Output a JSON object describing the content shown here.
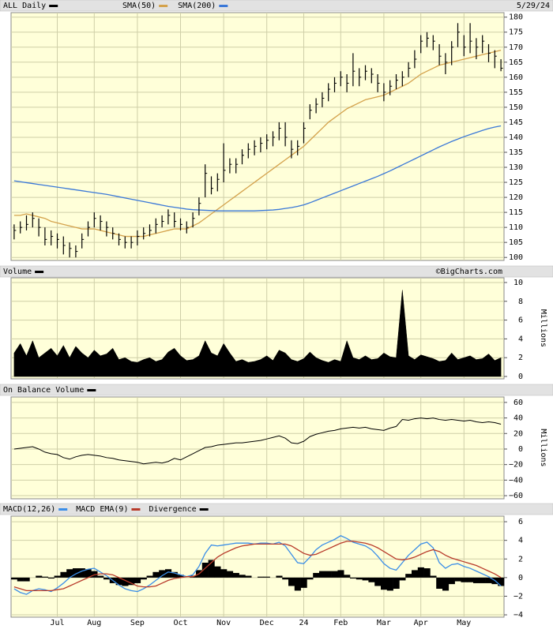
{
  "chart_data": [
    {
      "type": "ohlc",
      "title": "ALL Daily",
      "date": "5/29/24",
      "color": "#000000",
      "high": [
        111,
        112,
        114,
        115,
        113,
        110,
        109,
        108,
        107,
        105,
        104,
        108,
        112,
        115,
        114,
        112,
        110,
        108,
        107,
        107,
        109,
        110,
        111,
        113,
        114,
        116,
        115,
        113,
        112,
        115,
        120,
        131,
        127,
        128,
        138,
        133,
        133,
        136,
        138,
        139,
        140,
        141,
        142,
        145,
        145,
        139,
        139,
        145,
        151,
        153,
        155,
        158,
        160,
        162,
        161,
        168,
        163,
        164,
        163,
        161,
        158,
        159,
        161,
        162,
        165,
        169,
        174,
        175,
        174,
        171,
        168,
        172,
        178,
        174,
        178,
        173,
        174,
        171,
        169,
        166
      ],
      "low": [
        106,
        108,
        109,
        110,
        107,
        104,
        104,
        103,
        101,
        100,
        100,
        103,
        107,
        110,
        109,
        107,
        106,
        104,
        103,
        103,
        104,
        106,
        107,
        108,
        110,
        111,
        110,
        109,
        108,
        110,
        114,
        120,
        121,
        122,
        125,
        128,
        128,
        131,
        133,
        134,
        135,
        136,
        137,
        139,
        137,
        133,
        134,
        138,
        146,
        148,
        150,
        152,
        155,
        157,
        155,
        157,
        157,
        159,
        158,
        155,
        152,
        154,
        156,
        157,
        160,
        163,
        168,
        170,
        169,
        164,
        161,
        164,
        170,
        167,
        168,
        166,
        168,
        165,
        163,
        162
      ],
      "close": [
        109,
        110,
        111,
        113,
        110,
        106,
        107,
        106,
        104,
        103,
        102,
        106,
        110,
        113,
        112,
        110,
        108,
        106,
        105,
        105,
        107,
        108,
        109,
        111,
        112,
        114,
        112,
        111,
        110,
        113,
        118,
        128,
        123,
        126,
        129,
        131,
        131,
        134,
        136,
        137,
        138,
        139,
        140,
        143,
        140,
        136,
        137,
        143,
        149,
        151,
        153,
        156,
        158,
        160,
        158,
        162,
        160,
        162,
        161,
        158,
        155,
        157,
        159,
        160,
        163,
        166,
        172,
        173,
        172,
        167,
        165,
        170,
        175,
        170,
        172,
        170,
        172,
        168,
        167,
        163
      ],
      "series": [
        {
          "name": "SMA(50)",
          "color": "#d4a24c",
          "values": [
            114,
            114,
            114.5,
            114,
            113.5,
            113,
            112,
            111.5,
            111,
            110.5,
            110,
            109.5,
            109.5,
            109.5,
            109,
            108.5,
            108,
            107.5,
            107,
            107,
            107,
            107,
            107.5,
            108,
            108.5,
            109,
            109.5,
            109.5,
            109.5,
            110.5,
            111.5,
            113,
            114.5,
            116,
            117.5,
            119,
            120.5,
            122,
            123.5,
            125,
            126.5,
            128,
            129.5,
            131,
            132.5,
            134,
            135.5,
            137,
            139,
            141,
            143,
            145,
            146.5,
            148,
            149.5,
            150.5,
            151.5,
            152.5,
            153,
            153.5,
            154,
            155,
            156,
            157,
            158,
            159.5,
            161,
            162,
            163,
            164,
            164.5,
            165,
            165.5,
            166,
            166.5,
            167,
            167.5,
            168,
            168.5,
            169
          ]
        },
        {
          "name": "SMA(200)",
          "color": "#3a78d8",
          "values": [
            125.5,
            125.2,
            124.9,
            124.6,
            124.3,
            124,
            123.7,
            123.4,
            123.1,
            122.8,
            122.5,
            122.2,
            121.9,
            121.6,
            121.3,
            121,
            120.6,
            120.2,
            119.8,
            119.4,
            119,
            118.6,
            118.2,
            117.8,
            117.4,
            117,
            116.7,
            116.4,
            116.1,
            115.9,
            115.8,
            115.7,
            115.6,
            115.5,
            115.5,
            115.5,
            115.5,
            115.5,
            115.5,
            115.5,
            115.6,
            115.7,
            115.8,
            116,
            116.3,
            116.6,
            117,
            117.5,
            118.2,
            119,
            119.8,
            120.6,
            121.4,
            122.2,
            123,
            123.8,
            124.6,
            125.4,
            126.2,
            127,
            127.9,
            128.8,
            129.8,
            130.8,
            131.8,
            132.8,
            133.8,
            134.8,
            135.8,
            136.8,
            137.7,
            138.6,
            139.4,
            140.2,
            140.9,
            141.6,
            142.3,
            142.9,
            143.4,
            143.8
          ]
        }
      ],
      "ylim": [
        99,
        181.5
      ],
      "yticks": [
        100,
        105,
        110,
        115,
        120,
        125,
        130,
        135,
        140,
        145,
        150,
        155,
        160,
        165,
        170,
        175,
        180
      ],
      "grid": true
    },
    {
      "type": "area",
      "title": "Volume",
      "credit": "©BigCharts.com",
      "y_label": "Millions",
      "color": "#000000",
      "values": [
        2.5,
        3.5,
        2.2,
        3.8,
        2.0,
        2.5,
        3.0,
        2.2,
        3.3,
        2.0,
        3.2,
        2.5,
        2.0,
        2.8,
        2.2,
        2.4,
        3.0,
        1.8,
        2.0,
        1.6,
        1.5,
        1.8,
        2.0,
        1.6,
        1.8,
        2.6,
        3.0,
        2.2,
        1.7,
        1.8,
        2.2,
        3.8,
        2.5,
        2.2,
        3.5,
        2.5,
        1.6,
        1.8,
        1.5,
        1.6,
        1.8,
        2.2,
        1.7,
        2.8,
        2.5,
        1.8,
        1.6,
        1.9,
        2.6,
        2.0,
        1.7,
        1.5,
        1.8,
        1.6,
        3.8,
        2.0,
        1.8,
        2.2,
        1.8,
        1.9,
        2.5,
        2.1,
        2.0,
        9.2,
        2.2,
        1.8,
        2.3,
        2.1,
        1.9,
        1.6,
        1.7,
        2.5,
        1.8,
        2.0,
        2.2,
        1.8,
        1.9,
        2.4,
        1.7,
        2.0
      ],
      "ylim": [
        -0.25,
        10.5
      ],
      "yticks": [
        0,
        2,
        4,
        6,
        8,
        10
      ],
      "grid": true
    },
    {
      "type": "line",
      "title": "On Balance Volume",
      "y_label": "Millions",
      "color": "#000000",
      "values": [
        0,
        1,
        2,
        3,
        0,
        -4,
        -6,
        -7,
        -11,
        -13,
        -10,
        -8,
        -7,
        -8,
        -9,
        -11,
        -12,
        -14,
        -15,
        -16,
        -17,
        -19,
        -18,
        -17,
        -18,
        -16,
        -12,
        -14,
        -10,
        -6,
        -2,
        2,
        3,
        5,
        6,
        7,
        8,
        8,
        9,
        10,
        11,
        13,
        15,
        17,
        14,
        8,
        7,
        10,
        16,
        19,
        21,
        23,
        24,
        26,
        27,
        28,
        27,
        28,
        26,
        25,
        24,
        27,
        29,
        38,
        37,
        39,
        40,
        39,
        40,
        38,
        37,
        38,
        37,
        36,
        37,
        35,
        34,
        35,
        34,
        32
      ],
      "ylim": [
        -64,
        67
      ],
      "yticks": [
        {
          "value": -60,
          "label": "−60"
        },
        {
          "value": -40,
          "label": "−40"
        },
        {
          "value": -20,
          "label": "−20"
        },
        0,
        20,
        40,
        60
      ],
      "grid": true
    },
    {
      "type": "macd",
      "categories": [
        null,
        null,
        null,
        null,
        null,
        null,
        null,
        "Jul",
        null,
        null,
        null,
        null,
        null,
        "Aug",
        null,
        null,
        null,
        null,
        null,
        null,
        "Sep",
        null,
        null,
        null,
        null,
        null,
        null,
        "Oct",
        null,
        null,
        null,
        null,
        null,
        null,
        "Nov",
        null,
        null,
        null,
        null,
        null,
        null,
        "Dec",
        null,
        null,
        null,
        null,
        null,
        "24",
        null,
        null,
        null,
        null,
        null,
        "Feb",
        null,
        null,
        null,
        null,
        null,
        null,
        "Mar",
        null,
        null,
        null,
        null,
        null,
        "Apr",
        null,
        null,
        null,
        null,
        null,
        null,
        "May",
        null,
        null,
        null,
        null,
        null,
        null
      ],
      "series": [
        {
          "name": "MACD(12,26)",
          "color": "#3a8ee8",
          "values": [
            -1.2,
            -1.6,
            -1.8,
            -1.4,
            -1.2,
            -1.3,
            -1.5,
            -1.1,
            -0.6,
            0.0,
            0.4,
            0.7,
            0.9,
            1.0,
            0.6,
            0.2,
            -0.3,
            -0.8,
            -1.2,
            -1.4,
            -1.5,
            -1.2,
            -0.8,
            -0.3,
            0.2,
            0.6,
            0.5,
            0.3,
            0.1,
            0.3,
            1.2,
            2.6,
            3.5,
            3.4,
            3.5,
            3.6,
            3.7,
            3.7,
            3.7,
            3.6,
            3.7,
            3.7,
            3.6,
            3.8,
            3.4,
            2.5,
            1.6,
            1.5,
            2.2,
            3.0,
            3.5,
            3.8,
            4.1,
            4.5,
            4.2,
            3.8,
            3.6,
            3.4,
            3.0,
            2.3,
            1.5,
            1.0,
            0.8,
            1.6,
            2.4,
            3.0,
            3.6,
            3.8,
            3.2,
            1.6,
            1.0,
            1.4,
            1.5,
            1.2,
            1.0,
            0.7,
            0.4,
            0.1,
            -0.3,
            -0.9
          ]
        },
        {
          "name": "MACD EMA(9)",
          "color": "#b83a2a",
          "values": [
            -1.0,
            -1.2,
            -1.4,
            -1.4,
            -1.4,
            -1.4,
            -1.4,
            -1.3,
            -1.2,
            -0.9,
            -0.6,
            -0.3,
            0.0,
            0.3,
            0.4,
            0.4,
            0.3,
            0.0,
            -0.3,
            -0.6,
            -0.9,
            -1.0,
            -1.0,
            -0.9,
            -0.6,
            -0.3,
            -0.1,
            0.0,
            0.1,
            0.1,
            0.4,
            1.0,
            1.6,
            2.2,
            2.6,
            2.9,
            3.2,
            3.4,
            3.5,
            3.6,
            3.6,
            3.6,
            3.6,
            3.6,
            3.6,
            3.4,
            3.0,
            2.6,
            2.4,
            2.5,
            2.8,
            3.1,
            3.4,
            3.7,
            3.9,
            3.9,
            3.8,
            3.7,
            3.5,
            3.2,
            2.8,
            2.4,
            2.0,
            1.9,
            2.0,
            2.2,
            2.5,
            2.8,
            3.0,
            2.8,
            2.4,
            2.1,
            1.9,
            1.7,
            1.5,
            1.3,
            1.0,
            0.7,
            0.4,
            0.0
          ]
        },
        {
          "name": "Divergence",
          "color": "#000000",
          "kind": "histogram",
          "values": [
            -0.2,
            -0.4,
            -0.4,
            0.0,
            0.2,
            0.1,
            -0.1,
            0.2,
            0.6,
            0.9,
            1.0,
            1.0,
            0.9,
            0.7,
            0.2,
            -0.2,
            -0.6,
            -0.8,
            -0.9,
            -0.8,
            -0.6,
            -0.2,
            0.2,
            0.6,
            0.8,
            0.9,
            0.6,
            0.3,
            0.0,
            0.2,
            0.8,
            1.6,
            1.9,
            1.2,
            0.9,
            0.7,
            0.5,
            0.3,
            0.2,
            0.0,
            0.1,
            0.1,
            0.0,
            0.2,
            -0.2,
            -0.9,
            -1.4,
            -1.1,
            -0.2,
            0.5,
            0.7,
            0.7,
            0.7,
            0.8,
            0.3,
            -0.1,
            -0.2,
            -0.3,
            -0.5,
            -0.9,
            -1.3,
            -1.4,
            -1.2,
            -0.3,
            0.4,
            0.8,
            1.1,
            1.0,
            0.2,
            -1.2,
            -1.4,
            -0.7,
            -0.4,
            -0.5,
            -0.5,
            -0.6,
            -0.6,
            -0.6,
            -0.7,
            -0.9
          ]
        }
      ],
      "ylim": [
        -4.25,
        6.6
      ],
      "yticks": [
        {
          "value": -4,
          "label": "−4"
        },
        {
          "value": -2,
          "label": "−2"
        },
        0,
        2,
        4,
        6
      ],
      "grid": true
    }
  ]
}
